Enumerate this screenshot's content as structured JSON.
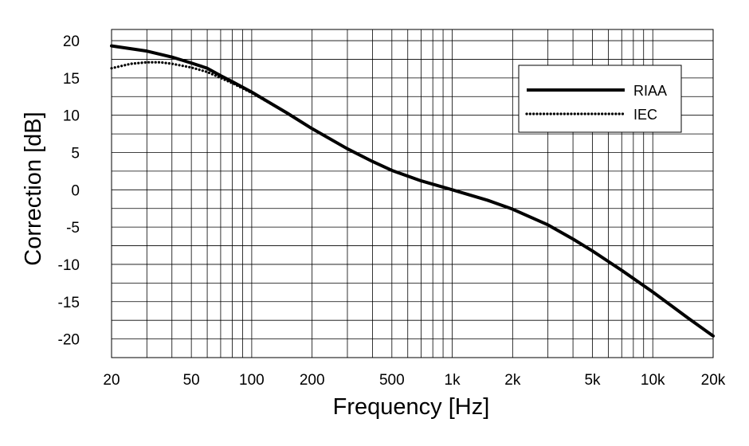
{
  "chart_data": {
    "type": "line",
    "xlabel": "Frequency [Hz]",
    "ylabel": "Correction [dB]",
    "x_scale": "log",
    "xlim": [
      20,
      20000
    ],
    "ylim": [
      -22.5,
      21.5
    ],
    "grid": true,
    "legend_position": "top-right",
    "x_major_ticks": [
      20,
      50,
      100,
      200,
      500,
      1000,
      2000,
      5000,
      10000,
      20000
    ],
    "x_tick_labels": [
      "20",
      "50",
      "100",
      "200",
      "500",
      "1k",
      "2k",
      "5k",
      "10k",
      "20k"
    ],
    "y_ticks": [
      20,
      15,
      10,
      5,
      0,
      -5,
      -10,
      -15,
      -20
    ],
    "y_tick_labels": [
      "20",
      "15",
      "10",
      "5",
      "0",
      "-5",
      "-10",
      "-15",
      "-20"
    ],
    "series": [
      {
        "name": "RIAA",
        "style": "solid",
        "color": "#000000",
        "x": [
          20,
          30,
          40,
          50,
          60,
          70,
          80,
          100,
          150,
          200,
          300,
          400,
          500,
          700,
          1000,
          1500,
          2000,
          3000,
          4000,
          5000,
          7000,
          10000,
          15000,
          20000
        ],
        "y": [
          19.3,
          18.6,
          17.8,
          17.0,
          16.3,
          15.3,
          14.5,
          13.1,
          10.3,
          8.2,
          5.5,
          3.8,
          2.6,
          1.2,
          0.0,
          -1.4,
          -2.6,
          -4.7,
          -6.6,
          -8.2,
          -10.8,
          -13.7,
          -17.2,
          -19.6
        ]
      },
      {
        "name": "IEC",
        "style": "dotted",
        "color": "#000000",
        "x": [
          20,
          25,
          30,
          35,
          40,
          50,
          60,
          70,
          80,
          100,
          150,
          200,
          300,
          400,
          500,
          700,
          1000,
          1500,
          2000,
          3000,
          4000,
          5000,
          7000,
          10000,
          15000,
          20000
        ],
        "y": [
          16.3,
          16.9,
          17.1,
          17.1,
          16.9,
          16.4,
          15.8,
          15.0,
          14.3,
          13.0,
          10.3,
          8.2,
          5.5,
          3.8,
          2.6,
          1.2,
          0.0,
          -1.4,
          -2.6,
          -4.7,
          -6.6,
          -8.2,
          -10.8,
          -13.7,
          -17.2,
          -19.6
        ]
      }
    ]
  }
}
